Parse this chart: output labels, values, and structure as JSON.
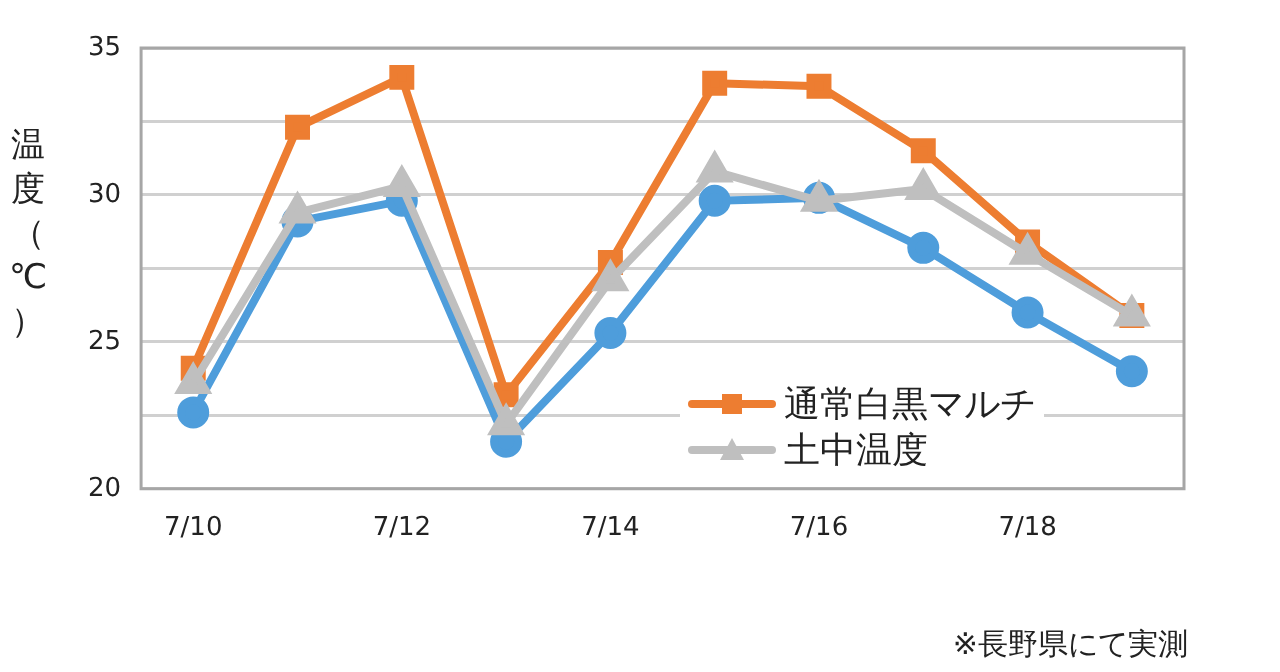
{
  "chart_data": {
    "type": "line",
    "ylabel": "温度（℃）",
    "annotations": [
      "※長野県にて実測"
    ],
    "categories": [
      "7/10",
      null,
      "7/12",
      null,
      "7/14",
      null,
      "7/16",
      null,
      "7/18",
      null
    ],
    "series": [
      {
        "color": "#4e9ddb",
        "marker": "circle",
        "values": [
          22.6,
          29.1,
          29.8,
          21.6,
          25.3,
          29.8,
          29.9,
          28.2,
          26.0,
          24.0
        ]
      },
      {
        "name": "通常白黒マルチ",
        "color": "#ed7d31",
        "marker": "square",
        "values": [
          24.1,
          32.3,
          34.0,
          23.2,
          27.7,
          33.8,
          33.7,
          31.5,
          28.4,
          25.9
        ]
      },
      {
        "name": "土中温度",
        "color": "#bfbfbf",
        "marker": "triangle",
        "values": [
          23.6,
          29.4,
          30.3,
          22.2,
          27.1,
          30.8,
          29.8,
          30.2,
          28.0,
          25.9
        ]
      }
    ],
    "ylim": [
      20,
      35
    ],
    "yticks": [
      20,
      {
        "value": 22.5,
        "label": null
      },
      25,
      {
        "value": 27.5,
        "label": null
      },
      30,
      {
        "value": 32.5,
        "label": null
      },
      35
    ],
    "grid": "y",
    "legend": "bottom right"
  }
}
